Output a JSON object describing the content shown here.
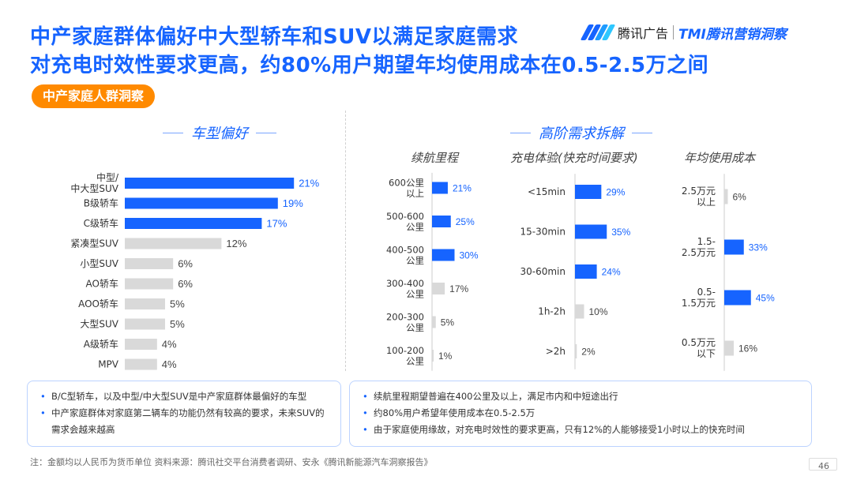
{
  "header": {
    "title_line1": "中产家庭群体偏好中大型轿车和SUV以满足家庭需求",
    "title_line2": "对充电时效性要求更高，约80%用户期望年均使用成本在0.5-2.5万之间",
    "logo_brand": "腾讯广告",
    "logo_tmi": "TMI腾讯营销洞察",
    "logo_colors": [
      "#1664ff",
      "#1664ff",
      "#1e9bff",
      "#2ec7ff"
    ]
  },
  "section_pill": "中产家庭人群洞察",
  "left_section_title": "车型偏好",
  "right_section_title": "高阶需求拆解",
  "colors": {
    "primary": "#1664ff",
    "secondary": "#d9d9d9",
    "accent": "#ff8a00"
  },
  "chart_data": [
    {
      "type": "bar",
      "orientation": "horizontal",
      "title": "车型偏好",
      "categories": [
        [
          "中型/",
          "中大型SUV"
        ],
        [
          "B级轿车"
        ],
        [
          "C级轿车"
        ],
        [
          "紧凑型SUV"
        ],
        [
          "小型SUV"
        ],
        [
          "AO轿车"
        ],
        [
          "AOO轿车"
        ],
        [
          "大型SUV"
        ],
        [
          "A级轿车"
        ],
        [
          "MPV"
        ]
      ],
      "values": [
        21,
        19,
        17,
        12,
        6,
        6,
        5,
        5,
        4,
        4
      ],
      "labels": [
        "21%",
        "19%",
        "17%",
        "12%",
        "6%",
        "6%",
        "5%",
        "5%",
        "4%",
        "4%"
      ],
      "highlight": [
        true,
        true,
        true,
        false,
        false,
        false,
        false,
        false,
        false,
        false
      ]
    },
    {
      "type": "bar",
      "orientation": "horizontal",
      "title": "续航里程",
      "categories": [
        [
          "600公里",
          "以上"
        ],
        [
          "500-600",
          "公里"
        ],
        [
          "400-500",
          "公里"
        ],
        [
          "300-400",
          "公里"
        ],
        [
          "200-300",
          "公里"
        ],
        [
          "100-200",
          "公里"
        ]
      ],
      "values": [
        21,
        25,
        30,
        17,
        5,
        1
      ],
      "labels": [
        "21%",
        "25%",
        "30%",
        "17%",
        "5%",
        "1%"
      ],
      "highlight": [
        true,
        true,
        true,
        false,
        false,
        false
      ]
    },
    {
      "type": "bar",
      "orientation": "horizontal",
      "title": "充电体验(快充时间要求)",
      "categories": [
        [
          "<15min"
        ],
        [
          "15-30min"
        ],
        [
          "30-60min"
        ],
        [
          "1h-2h"
        ],
        [
          ">2h"
        ]
      ],
      "values": [
        29,
        35,
        24,
        10,
        2
      ],
      "labels": [
        "29%",
        "35%",
        "24%",
        "10%",
        "2%"
      ],
      "highlight": [
        true,
        true,
        true,
        false,
        false
      ]
    },
    {
      "type": "bar",
      "orientation": "horizontal",
      "title": "年均使用成本",
      "categories": [
        [
          "2.5万元",
          "以上"
        ],
        [
          "1.5-",
          "2.5万元"
        ],
        [
          "0.5-",
          "1.5万元"
        ],
        [
          "0.5万元",
          "以下"
        ]
      ],
      "values": [
        6,
        33,
        45,
        16
      ],
      "labels": [
        "6%",
        "33%",
        "45%",
        "16%"
      ],
      "highlight": [
        false,
        true,
        true,
        false
      ]
    }
  ],
  "left_notes": [
    "B/C型轿车，以及中型/中大型SUV是中产家庭群体最偏好的车型",
    "中产家庭群体对家庭第二辆车的功能仍然有较高的要求，未来SUV的需求会越来越高"
  ],
  "right_notes": [
    "续航里程期望普遍在400公里及以上，满足市内和中短途出行",
    "约80%用户希望年使用成本在0.5-2.5万",
    "由于家庭使用缘故，对充电时效性的要求更高，只有12%的人能够接受1小时以上的快充时间"
  ],
  "footer": "注：金额均以人民币为货币单位      资料来源：腾讯社交平台消费者调研、安永《腾讯新能源汽车洞察报告》",
  "page_number": "46"
}
